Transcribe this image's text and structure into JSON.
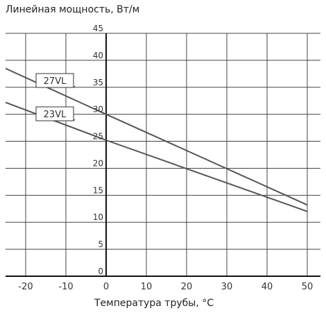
{
  "chart_data": {
    "type": "line",
    "title": "Линейная мощность, Вт/м",
    "xlabel": "Температура трубы, °C",
    "ylabel": "",
    "xlim": [
      -25,
      53
    ],
    "ylim": [
      0,
      45
    ],
    "x_ticks": [
      "-20",
      "-10",
      "0",
      "10",
      "20",
      "30",
      "40",
      "50"
    ],
    "y_ticks": [
      "0",
      "5",
      "10",
      "15",
      "20",
      "25",
      "30",
      "35",
      "40",
      "45"
    ],
    "grid": true,
    "legend": "inline-labels",
    "series": [
      {
        "name": "27VL",
        "x": [
          -25,
          0,
          50
        ],
        "y": [
          38.5,
          30,
          13.2
        ]
      },
      {
        "name": "23VL",
        "x": [
          -25,
          0,
          50
        ],
        "y": [
          32.2,
          25.2,
          12
        ]
      }
    ]
  }
}
